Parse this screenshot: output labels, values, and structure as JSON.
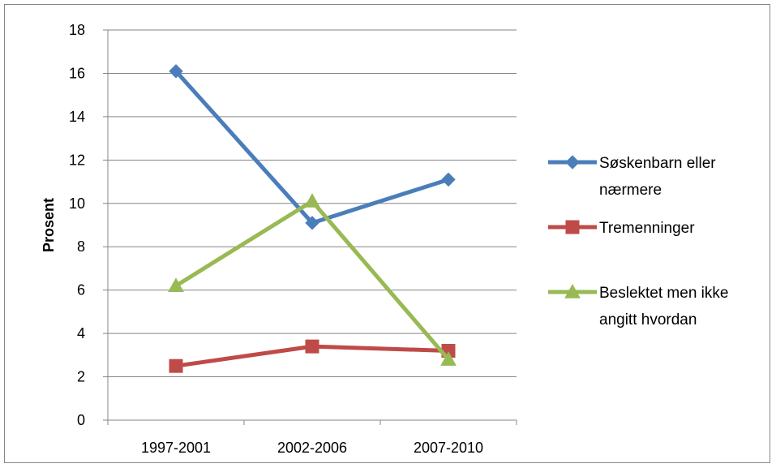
{
  "chart_data": {
    "type": "line",
    "title": "",
    "xlabel": "",
    "ylabel": "Prosent",
    "categories": [
      "1997-2001",
      "2002-2006",
      "2007-2010"
    ],
    "ylim": [
      0,
      18
    ],
    "yticks": [
      0,
      2,
      4,
      6,
      8,
      10,
      12,
      14,
      16,
      18
    ],
    "grid": true,
    "legend_position": "right",
    "series": [
      {
        "name": "Søskenbarn eller nærmere",
        "legend_lines": [
          "Søskenbarn eller",
          "nærmere"
        ],
        "values": [
          16.1,
          9.1,
          11.1
        ],
        "color": "#4a7ebb",
        "marker": "diamond"
      },
      {
        "name": "Tremenninger",
        "legend_lines": [
          "Tremenninger"
        ],
        "values": [
          2.5,
          3.4,
          3.2
        ],
        "color": "#be4b48",
        "marker": "square"
      },
      {
        "name": "Beslektet men ikke angitt hvordan",
        "legend_lines": [
          "Beslektet men ikke",
          "angitt hvordan"
        ],
        "values": [
          6.2,
          10.1,
          2.8
        ],
        "color": "#98b954",
        "marker": "triangle"
      }
    ]
  }
}
